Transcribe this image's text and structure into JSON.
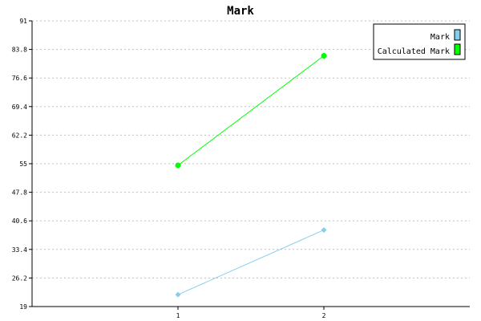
{
  "chart_data": {
    "type": "line",
    "title": "Mark",
    "xlabel": "",
    "ylabel": "",
    "x": [
      1,
      2
    ],
    "xlim": [
      0,
      3
    ],
    "ylim": [
      19,
      91
    ],
    "yticks": [
      19,
      26.2,
      33.4,
      40.6,
      47.8,
      55,
      62.2,
      69.4,
      76.6,
      83.8,
      91
    ],
    "grid": true,
    "legend_position": "top-right",
    "series": [
      {
        "name": "Mark",
        "values": [
          22,
          38.3
        ],
        "color": "#87ceeb",
        "marker": "diamond"
      },
      {
        "name": "Calculated Mark",
        "values": [
          54.6,
          82.2
        ],
        "color": "#00ff00",
        "marker": "circle"
      }
    ]
  }
}
